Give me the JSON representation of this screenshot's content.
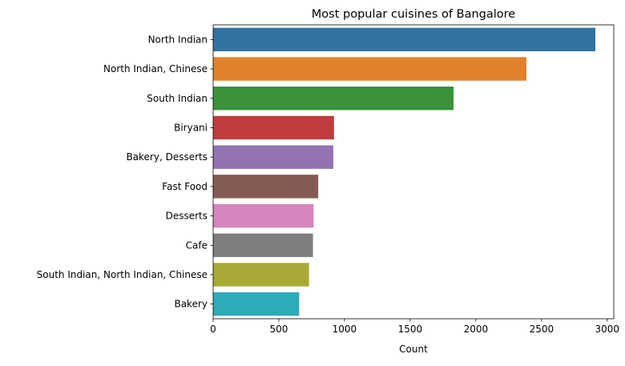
{
  "chart_data": {
    "type": "bar",
    "orientation": "horizontal",
    "title": "Most popular cuisines of Bangalore",
    "xlabel": "Count",
    "ylabel": "",
    "xlim": [
      0,
      3050
    ],
    "xticks": [
      0,
      500,
      1000,
      1500,
      2000,
      2500,
      3000
    ],
    "grid": false,
    "legend": "none",
    "categories": [
      "North Indian",
      "North Indian, Chinese",
      "South Indian",
      "Biryani",
      "Bakery, Desserts",
      "Fast Food",
      "Desserts",
      "Cafe",
      "South Indian, North Indian, Chinese",
      "Bakery"
    ],
    "values": [
      2910,
      2385,
      1830,
      920,
      915,
      800,
      765,
      760,
      730,
      655
    ],
    "colors": [
      "#3274a1",
      "#e1812c",
      "#3a923a",
      "#c03d3e",
      "#9372b2",
      "#845b53",
      "#d684bd",
      "#7f7f7f",
      "#a9aa35",
      "#2eabb8"
    ]
  }
}
